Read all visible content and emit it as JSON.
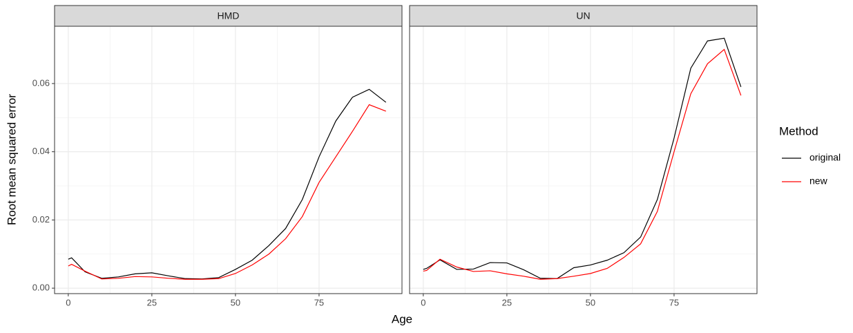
{
  "xlabel": "Age",
  "ylabel": "Root mean squared error",
  "legend_title": "Method",
  "chart_data": [
    {
      "type": "line",
      "title": "HMD",
      "x": [
        0,
        1,
        5,
        10,
        15,
        20,
        25,
        30,
        35,
        40,
        45,
        50,
        55,
        60,
        65,
        70,
        75,
        80,
        85,
        90,
        95
      ],
      "series": [
        {
          "name": "original",
          "color": "#000000",
          "values": [
            0.0085,
            0.0089,
            0.0048,
            0.0029,
            0.0033,
            0.0042,
            0.0045,
            0.0036,
            0.0028,
            0.0027,
            0.0031,
            0.0055,
            0.0082,
            0.0125,
            0.0175,
            0.026,
            0.0385,
            0.049,
            0.056,
            0.0583,
            0.0545
          ]
        },
        {
          "name": "new",
          "color": "#ff0000",
          "values": [
            0.0065,
            0.007,
            0.005,
            0.0027,
            0.0029,
            0.0034,
            0.0033,
            0.0029,
            0.0026,
            0.0026,
            0.0028,
            0.0043,
            0.0068,
            0.01,
            0.0145,
            0.021,
            0.031,
            0.0385,
            0.046,
            0.0538,
            0.0519
          ]
        }
      ],
      "xlim": [
        -4.1,
        99.8
      ],
      "ylim": [
        -0.0016,
        0.0768
      ],
      "xticks": [
        0,
        25,
        50,
        75
      ],
      "yticks": [
        {
          "value": 0,
          "label": "0.00"
        },
        0.02,
        0.04,
        0.06
      ],
      "grid": true
    },
    {
      "type": "line",
      "title": "UN",
      "x": [
        0,
        1,
        5,
        10,
        15,
        20,
        25,
        30,
        35,
        40,
        45,
        50,
        55,
        60,
        65,
        70,
        75,
        80,
        85,
        90,
        95
      ],
      "series": [
        {
          "name": "original",
          "color": "#000000",
          "values": [
            0.0055,
            0.0058,
            0.0083,
            0.0055,
            0.0056,
            0.0075,
            0.0074,
            0.0054,
            0.0029,
            0.0028,
            0.006,
            0.0068,
            0.0082,
            0.0104,
            0.015,
            0.026,
            0.044,
            0.0645,
            0.0725,
            0.0733,
            0.059
          ]
        },
        {
          "name": "new",
          "color": "#ff0000",
          "values": [
            0.005,
            0.0052,
            0.0085,
            0.0062,
            0.0049,
            0.0051,
            0.0042,
            0.0035,
            0.0026,
            0.0028,
            0.0035,
            0.0043,
            0.0058,
            0.009,
            0.013,
            0.0225,
            0.04,
            0.057,
            0.0658,
            0.07,
            0.0565
          ]
        }
      ],
      "xlim": [
        -4.1,
        99.8
      ],
      "ylim": [
        -0.0016,
        0.0768
      ],
      "xticks": [
        0,
        25,
        50,
        75
      ],
      "yticks": [
        0,
        0.02,
        0.04,
        0.06
      ],
      "grid": true
    }
  ]
}
